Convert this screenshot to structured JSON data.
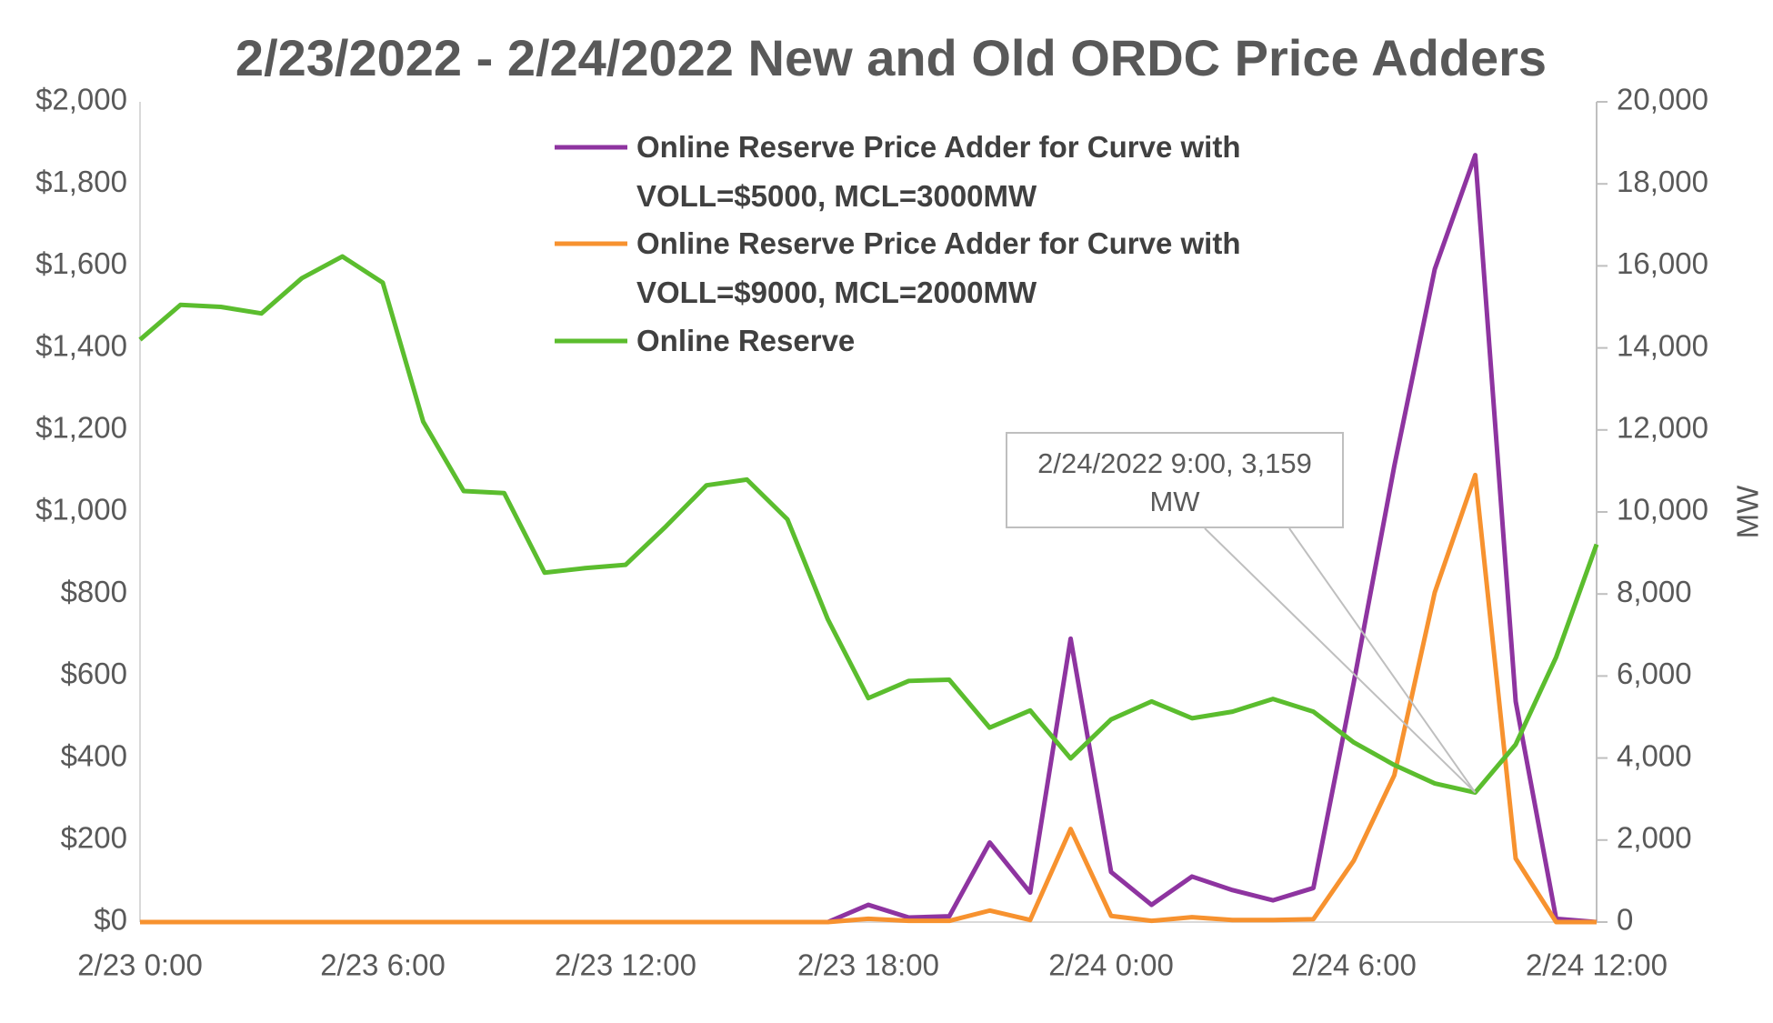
{
  "chart_data": {
    "type": "line",
    "title": "2/23/2022 - 2/24/2022 New and Old ORDC Price Adders",
    "y2_label": "MW",
    "categories": [
      "2/23 0:00",
      null,
      null,
      null,
      null,
      null,
      "2/23 6:00",
      null,
      null,
      null,
      null,
      null,
      "2/23 12:00",
      null,
      null,
      null,
      null,
      null,
      "2/23 18:00",
      null,
      null,
      null,
      null,
      null,
      "2/24 0:00",
      null,
      null,
      null,
      null,
      null,
      "2/24 6:00",
      null,
      null,
      null,
      null,
      null,
      "2/24 12:00"
    ],
    "ylim": [
      0,
      2000
    ],
    "yticks": [
      {
        "value": 0,
        "label": "$0"
      },
      {
        "value": 200,
        "label": "$200"
      },
      {
        "value": 400,
        "label": "$400"
      },
      {
        "value": 600,
        "label": "$600"
      },
      {
        "value": 800,
        "label": "$800"
      },
      {
        "value": 1000,
        "label": "$1,000"
      },
      {
        "value": 1200,
        "label": "$1,200"
      },
      {
        "value": 1400,
        "label": "$1,400"
      },
      {
        "value": 1600,
        "label": "$1,600"
      },
      {
        "value": 1800,
        "label": "$1,800"
      },
      {
        "value": 2000,
        "label": "$2,000"
      }
    ],
    "y2lim": [
      0,
      20000
    ],
    "y2ticks": [
      0,
      {
        "value": 2000,
        "label": "2,000"
      },
      {
        "value": 4000,
        "label": "4,000"
      },
      {
        "value": 6000,
        "label": "6,000"
      },
      {
        "value": 8000,
        "label": "8,000"
      },
      {
        "value": 10000,
        "label": "10,000"
      },
      {
        "value": 12000,
        "label": "12,000"
      },
      {
        "value": 14000,
        "label": "14,000"
      },
      {
        "value": 16000,
        "label": "16,000"
      },
      {
        "value": 18000,
        "label": "18,000"
      },
      {
        "value": 20000,
        "label": "20,000"
      }
    ],
    "series": [
      {
        "name": "Online Reserve Price Adder for Curve with VOLL=$5000, MCL=3000MW",
        "color": "#8e34a0",
        "values": [
          0,
          0,
          0,
          0,
          0,
          0,
          0,
          0,
          0,
          0,
          0,
          0,
          0,
          0,
          0,
          0,
          0,
          0,
          42,
          11,
          14,
          194,
          72,
          691,
          122,
          42,
          111,
          78,
          53,
          83,
          585,
          1112,
          1592,
          1870,
          538,
          8,
          0
        ]
      },
      {
        "name": "Online Reserve Price Adder for Curve with VOLL=$9000, MCL=2000MW",
        "color": "#f7922f",
        "values": [
          0,
          0,
          0,
          0,
          0,
          0,
          0,
          0,
          0,
          0,
          0,
          0,
          0,
          0,
          0,
          0,
          0,
          0,
          8,
          3,
          3,
          28,
          5,
          227,
          15,
          3,
          12,
          5,
          5,
          7,
          150,
          358,
          804,
          1090,
          155,
          0,
          0
        ]
      },
      {
        "name": "Online Reserve",
        "color": "#5bbd2e",
        "axis": "y2",
        "values": [
          14200,
          15050,
          15000,
          14840,
          15700,
          16230,
          15590,
          12200,
          10510,
          10460,
          8520,
          8630,
          8710,
          9650,
          10650,
          10790,
          9820,
          7380,
          5460,
          5880,
          5910,
          4740,
          5160,
          3990,
          4940,
          5380,
          4970,
          5130,
          5440,
          5130,
          4380,
          3830,
          3380,
          3159,
          4330,
          6460,
          9210
        ]
      }
    ],
    "annotation": {
      "text": "2/24/2022 9:00, 3,159 MW",
      "series": 2,
      "index": 33
    }
  }
}
